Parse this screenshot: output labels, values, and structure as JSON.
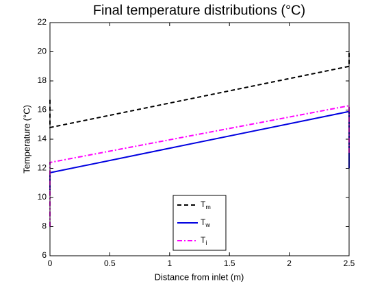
{
  "chart_data": {
    "type": "line",
    "title": "Final temperature distributions (°C)",
    "xlabel": "Distance from inlet (m)",
    "ylabel": "Temperature (°C)",
    "xlim": [
      0,
      2.5
    ],
    "xticks": [
      0,
      0.5,
      1,
      1.5,
      2,
      2.5
    ],
    "ylim": [
      6,
      22
    ],
    "yticks": [
      6,
      8,
      10,
      12,
      14,
      16,
      18,
      20,
      22
    ],
    "grid": false,
    "legend": "south",
    "series": [
      {
        "name": "Tm",
        "color": "#000000",
        "linestyle": "dashed",
        "x": [
          0,
          0,
          2.5,
          2.5
        ],
        "values": [
          16.7,
          14.8,
          19.0,
          20.1
        ]
      },
      {
        "name": "Tw",
        "color": "#0000e0",
        "linestyle": "solid",
        "x": [
          0,
          0,
          2.5,
          2.5
        ],
        "values": [
          10.5,
          11.7,
          15.9,
          12.0
        ]
      },
      {
        "name": "Ti",
        "color": "#ff00ff",
        "linestyle": "dashdot",
        "x": [
          0,
          0,
          2.5,
          2.5
        ],
        "values": [
          8.0,
          12.4,
          16.3,
          13.0
        ]
      }
    ]
  }
}
